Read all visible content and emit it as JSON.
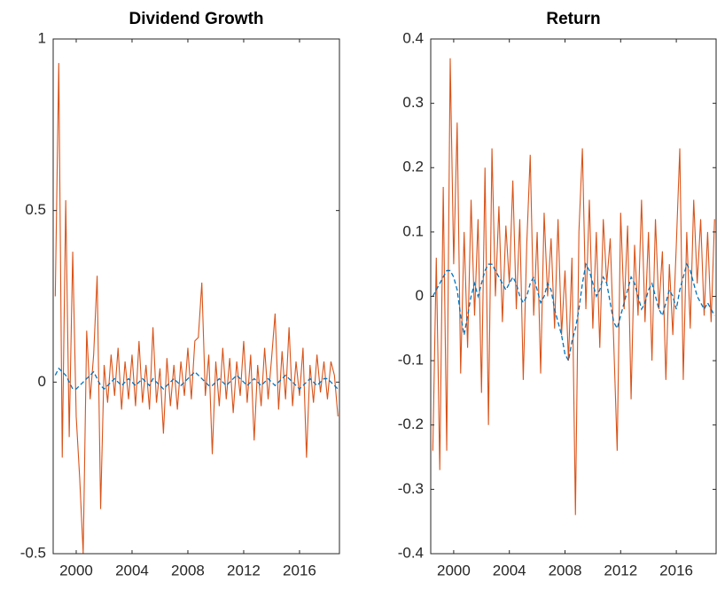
{
  "chart_data": [
    {
      "type": "line",
      "title": "Dividend Growth",
      "x": [
        1998.5,
        1998.75,
        1999,
        1999.25,
        1999.5,
        1999.75,
        2000,
        2000.25,
        2000.5,
        2000.75,
        2001,
        2001.25,
        2001.5,
        2001.75,
        2002,
        2002.25,
        2002.5,
        2002.75,
        2003,
        2003.25,
        2003.5,
        2003.75,
        2004,
        2004.25,
        2004.5,
        2004.75,
        2005,
        2005.25,
        2005.5,
        2005.75,
        2006,
        2006.25,
        2006.5,
        2006.75,
        2007,
        2007.25,
        2007.5,
        2007.75,
        2008,
        2008.25,
        2008.5,
        2008.75,
        2009,
        2009.25,
        2009.5,
        2009.75,
        2010,
        2010.25,
        2010.5,
        2010.75,
        2011,
        2011.25,
        2011.5,
        2011.75,
        2012,
        2012.25,
        2012.5,
        2012.75,
        2013,
        2013.25,
        2013.5,
        2013.75,
        2014,
        2014.25,
        2014.5,
        2014.75,
        2015,
        2015.25,
        2015.5,
        2015.75,
        2016,
        2016.25,
        2016.5,
        2016.75,
        2017,
        2017.25,
        2017.5,
        2017.75,
        2018,
        2018.25,
        2018.5,
        2018.75
      ],
      "series": [
        {
          "color": "#d95319",
          "style": "solid",
          "values": [
            0.25,
            0.93,
            -0.22,
            0.53,
            -0.16,
            0.38,
            -0.1,
            -0.28,
            -0.5,
            0.15,
            -0.05,
            0.08,
            0.31,
            -0.37,
            0.05,
            -0.06,
            0.08,
            -0.04,
            0.1,
            -0.08,
            0.06,
            -0.05,
            0.08,
            -0.07,
            0.12,
            -0.06,
            0.05,
            -0.08,
            0.16,
            -0.06,
            0.04,
            -0.15,
            0.07,
            -0.07,
            0.05,
            -0.08,
            0.06,
            -0.04,
            0.1,
            -0.05,
            0.12,
            0.13,
            0.29,
            -0.04,
            0.08,
            -0.21,
            0.06,
            -0.07,
            0.1,
            -0.05,
            0.07,
            -0.09,
            0.06,
            -0.04,
            0.12,
            -0.06,
            0.08,
            -0.17,
            0.05,
            -0.07,
            0.1,
            -0.05,
            0.07,
            0.2,
            -0.08,
            0.09,
            -0.05,
            0.16,
            -0.07,
            0.06,
            -0.04,
            0.1,
            -0.22,
            0.05,
            -0.06,
            0.08,
            -0.03,
            0.06,
            -0.05,
            0.06,
            0.02,
            -0.1
          ]
        },
        {
          "color": "#0072bd",
          "style": "dashed",
          "values": [
            0.02,
            0.04,
            0.03,
            0.02,
            0.0,
            -0.02,
            -0.02,
            -0.01,
            0.0,
            0.01,
            0.02,
            0.03,
            0.01,
            -0.01,
            -0.02,
            -0.01,
            0.0,
            0.01,
            0.0,
            -0.01,
            0.0,
            0.01,
            0.0,
            -0.01,
            0.0,
            0.01,
            0.0,
            -0.01,
            0.01,
            0.0,
            -0.01,
            -0.02,
            -0.01,
            0.0,
            0.01,
            0.0,
            -0.01,
            0.0,
            0.01,
            0.02,
            0.03,
            0.02,
            0.01,
            0.0,
            -0.01,
            -0.01,
            0.0,
            0.01,
            0.0,
            -0.01,
            0.0,
            0.01,
            0.02,
            0.01,
            0.0,
            -0.01,
            0.0,
            0.01,
            0.0,
            -0.01,
            0.0,
            0.01,
            0.0,
            -0.01,
            0.0,
            0.01,
            0.02,
            0.01,
            0.0,
            -0.01,
            -0.02,
            -0.01,
            0.0,
            0.01,
            0.0,
            -0.01,
            0.0,
            0.01,
            0.01,
            0.0,
            -0.01,
            -0.02
          ]
        }
      ],
      "xlim": [
        1998.35,
        2018.86
      ],
      "xticks": [
        2000,
        2004,
        2008,
        2012,
        2016
      ],
      "ylim": [
        -0.5,
        1
      ],
      "yticks": [
        -0.5,
        0,
        0.5,
        1
      ]
    },
    {
      "type": "line",
      "title": "Return",
      "x": [
        1998.5,
        1998.75,
        1999,
        1999.25,
        1999.5,
        1999.75,
        2000,
        2000.25,
        2000.5,
        2000.75,
        2001,
        2001.25,
        2001.5,
        2001.75,
        2002,
        2002.25,
        2002.5,
        2002.75,
        2003,
        2003.25,
        2003.5,
        2003.75,
        2004,
        2004.25,
        2004.5,
        2004.75,
        2005,
        2005.25,
        2005.5,
        2005.75,
        2006,
        2006.25,
        2006.5,
        2006.75,
        2007,
        2007.25,
        2007.5,
        2007.75,
        2008,
        2008.25,
        2008.5,
        2008.75,
        2009,
        2009.25,
        2009.5,
        2009.75,
        2010,
        2010.25,
        2010.5,
        2010.75,
        2011,
        2011.25,
        2011.5,
        2011.75,
        2012,
        2012.25,
        2012.5,
        2012.75,
        2013,
        2013.25,
        2013.5,
        2013.75,
        2014,
        2014.25,
        2014.5,
        2014.75,
        2015,
        2015.25,
        2015.5,
        2015.75,
        2016,
        2016.25,
        2016.5,
        2016.75,
        2017,
        2017.25,
        2017.5,
        2017.75,
        2018,
        2018.25,
        2018.5,
        2018.75
      ],
      "series": [
        {
          "color": "#d95319",
          "style": "solid",
          "values": [
            -0.24,
            0.06,
            -0.27,
            0.17,
            -0.24,
            0.37,
            0.05,
            0.27,
            -0.12,
            0.1,
            -0.08,
            0.15,
            -0.03,
            0.12,
            -0.15,
            0.2,
            -0.2,
            0.23,
            0.0,
            0.14,
            -0.04,
            0.11,
            0.02,
            0.18,
            -0.02,
            0.12,
            -0.13,
            0.08,
            0.22,
            -0.03,
            0.1,
            -0.12,
            0.13,
            0.0,
            0.09,
            -0.05,
            0.12,
            -0.06,
            0.04,
            -0.1,
            0.06,
            -0.34,
            0.1,
            0.23,
            -0.02,
            0.15,
            -0.05,
            0.1,
            -0.08,
            0.12,
            0.02,
            0.09,
            -0.07,
            -0.24,
            0.13,
            -0.02,
            0.11,
            -0.16,
            0.08,
            -0.03,
            0.15,
            -0.04,
            0.1,
            -0.1,
            0.12,
            -0.02,
            0.07,
            -0.13,
            0.05,
            -0.06,
            0.08,
            0.23,
            -0.13,
            0.1,
            -0.05,
            0.15,
            0.02,
            0.12,
            -0.03,
            0.1,
            -0.04,
            0.12
          ]
        },
        {
          "color": "#0072bd",
          "style": "dashed",
          "values": [
            0.0,
            0.01,
            0.02,
            0.03,
            0.04,
            0.04,
            0.03,
            0.01,
            -0.03,
            -0.06,
            -0.03,
            0.0,
            0.02,
            0.0,
            0.02,
            0.04,
            0.05,
            0.05,
            0.04,
            0.03,
            0.02,
            0.01,
            0.02,
            0.03,
            0.02,
            0.0,
            -0.01,
            0.0,
            0.02,
            0.03,
            0.01,
            -0.01,
            0.0,
            0.02,
            0.01,
            -0.02,
            -0.04,
            -0.06,
            -0.09,
            -0.1,
            -0.07,
            -0.05,
            -0.02,
            0.02,
            0.05,
            0.04,
            0.02,
            0.0,
            0.01,
            0.03,
            0.02,
            -0.01,
            -0.04,
            -0.05,
            -0.03,
            -0.01,
            0.01,
            0.03,
            0.02,
            0.0,
            -0.02,
            -0.01,
            0.01,
            0.02,
            0.0,
            -0.02,
            -0.03,
            -0.01,
            0.01,
            0.0,
            -0.02,
            0.01,
            0.03,
            0.05,
            0.04,
            0.02,
            0.0,
            -0.01,
            -0.02,
            -0.01,
            -0.02,
            -0.03
          ]
        }
      ],
      "xlim": [
        1998.35,
        2018.86
      ],
      "xticks": [
        2000,
        2004,
        2008,
        2012,
        2016
      ],
      "ylim": [
        -0.4,
        0.4
      ],
      "yticks": [
        -0.4,
        -0.3,
        -0.2,
        -0.1,
        0,
        0.1,
        0.2,
        0.3,
        0.4
      ]
    }
  ]
}
